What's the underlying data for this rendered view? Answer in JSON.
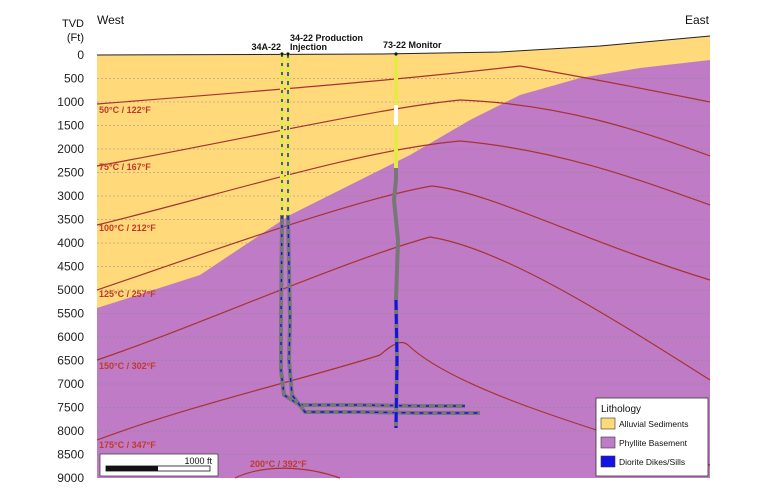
{
  "axis": {
    "title_line1": "TVD",
    "title_line2": "(Ft)",
    "ticks": [
      "0",
      "500",
      "1000",
      "1500",
      "2000",
      "2500",
      "3000",
      "3500",
      "4000",
      "4500",
      "5000",
      "5500",
      "6000",
      "6500",
      "7000",
      "7500",
      "8000",
      "8500",
      "9000"
    ]
  },
  "orientation": {
    "left": "West",
    "right": "East"
  },
  "wells": {
    "w1": "34A-22",
    "w2_line1": "34-22 Production",
    "w2_line2": "Injection",
    "w3": "73-22 Monitor"
  },
  "isotherms": [
    "50°C / 122°F",
    "75°C / 167°F",
    "100°C / 212°F",
    "125°C / 257°F",
    "150°C / 302°F",
    "175°C / 347°F",
    "200°C / 392°F"
  ],
  "legend": {
    "title": "Lithology",
    "items": [
      {
        "label": "Alluvial Sediments",
        "color": "#ffd97a"
      },
      {
        "label": "Phyllite Basement",
        "color": "#c07bc6"
      },
      {
        "label": "Diorite Dikes/Sills",
        "color": "#1212e6"
      }
    ]
  },
  "scale_bar": {
    "label": "1000 ft"
  },
  "colors": {
    "alluvium": "#ffd97a",
    "phyllite": "#c07bc6",
    "diorite": "#1212e6",
    "isotherm": "#a83232"
  }
}
